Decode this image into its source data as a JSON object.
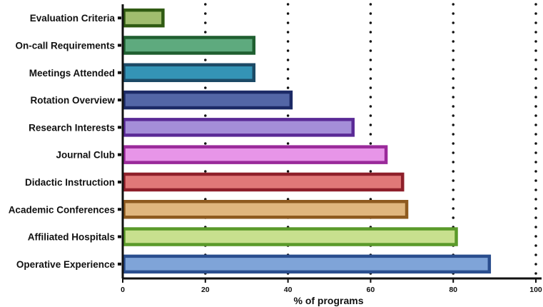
{
  "chart_data": {
    "type": "bar",
    "orientation": "horizontal",
    "title": "",
    "xlabel": "% of programs",
    "ylabel": "",
    "xlim": [
      0,
      100
    ],
    "xticks": [
      0,
      20,
      40,
      60,
      80,
      100
    ],
    "grid": "vertical dotted",
    "categories": [
      "Evaluation Criteria",
      "On-call Requirements",
      "Meetings Attended",
      "Rotation Overview",
      "Research Interests",
      "Journal Club",
      "Didactic Instruction",
      "Academic Conferences",
      "Affiliated Hospitals",
      "Operative Experience"
    ],
    "values": [
      10,
      32,
      32,
      41,
      56,
      64,
      68,
      69,
      81,
      89
    ],
    "fill_colors": [
      "#a0bd6e",
      "#5eaa7e",
      "#3494b6",
      "#5366a6",
      "#a48ed8",
      "#e795e8",
      "#e07878",
      "#e0b67e",
      "#c8e08e",
      "#7fa4d8"
    ],
    "stroke_colors": [
      "#2f5a12",
      "#1f5f30",
      "#1c4a66",
      "#1c2a66",
      "#5a2a96",
      "#9a2a9a",
      "#8e1f2a",
      "#8e5a1f",
      "#5a9a2a",
      "#2a4e8e"
    ]
  }
}
